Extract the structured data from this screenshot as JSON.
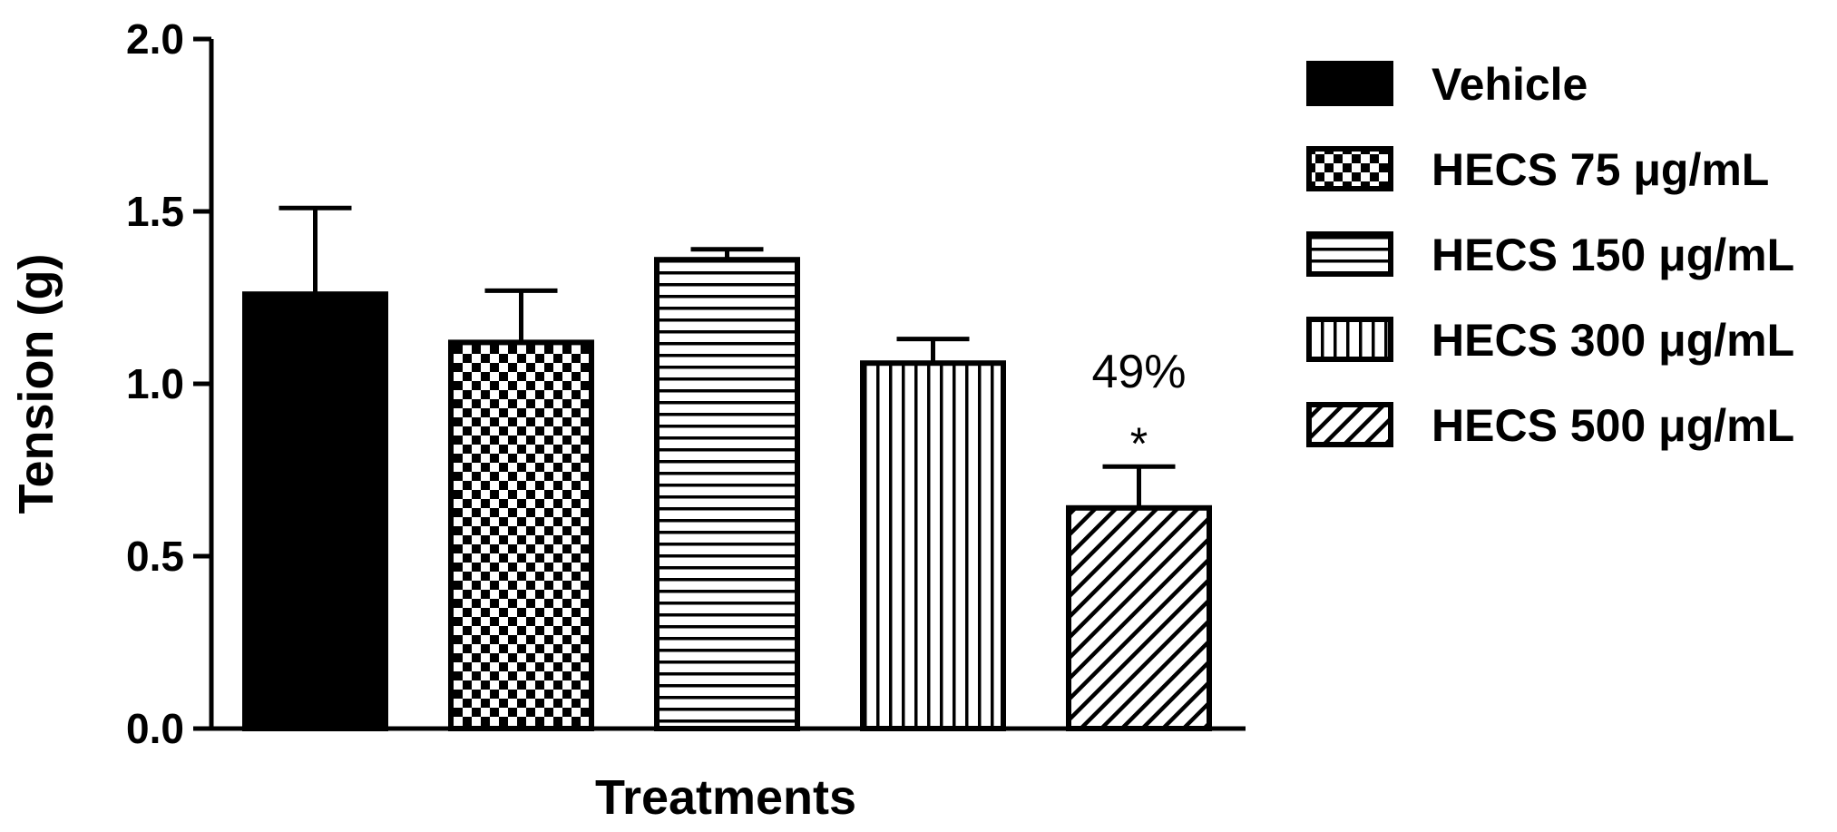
{
  "chart_data": {
    "type": "bar",
    "title": "",
    "xlabel": "Treatments",
    "ylabel": "Tension (g)",
    "ylim": [
      0,
      2.0
    ],
    "yticks": [
      "0.0",
      "0.5",
      "1.0",
      "1.5",
      "2.0"
    ],
    "grid": false,
    "legend_position": "right",
    "categories": [
      "Vehicle",
      "HECS 75 μg/mL",
      "HECS 150 μg/mL",
      "HECS 300 μg/mL",
      "HECS 500 μg/mL"
    ],
    "values": [
      1.26,
      1.12,
      1.36,
      1.06,
      0.64
    ],
    "errors": [
      0.25,
      0.15,
      0.03,
      0.07,
      0.12
    ],
    "patterns": [
      "solid",
      "checker",
      "horizontal-lines",
      "vertical-lines",
      "diagonal-lines"
    ],
    "annotations": [
      {
        "category_index": 4,
        "percent": "49%",
        "significance": "*"
      }
    ]
  }
}
